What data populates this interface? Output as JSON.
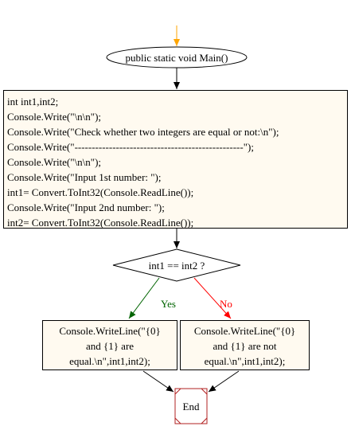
{
  "colors": {
    "arrow": "#000000",
    "start_arrow": "#ffa500",
    "box_fill": "#fffaf0",
    "end_border": "#b22222",
    "yes": "#006400",
    "no": "#ff0000"
  },
  "flowchart": {
    "start_label": "public static void Main()",
    "code_lines": [
      "int int1,int2;",
      "Console.Write(\"\\n\\n\");",
      "Console.Write(\"Check whether two integers are equal or not:\\n\");",
      "Console.Write(\"-------------------------------------------------\");",
      "Console.Write(\"\\n\\n\");",
      "Console.Write(\"Input 1st number: \");",
      "int1= Convert.ToInt32(Console.ReadLine());",
      "Console.Write(\"Input 2nd number: \");",
      "int2= Convert.ToInt32(Console.ReadLine());"
    ],
    "decision_label": "int1 == int2 ?",
    "yes_label": "Yes",
    "no_label": "No",
    "yes_box_lines": [
      "Console.WriteLine(\"{0}",
      "and {1} are",
      "equal.\\n\",int1,int2);"
    ],
    "no_box_lines": [
      "Console.WriteLine(\"{0}",
      "and {1} are not",
      "equal.\\n\",int1,int2);"
    ],
    "end_label": "End"
  }
}
